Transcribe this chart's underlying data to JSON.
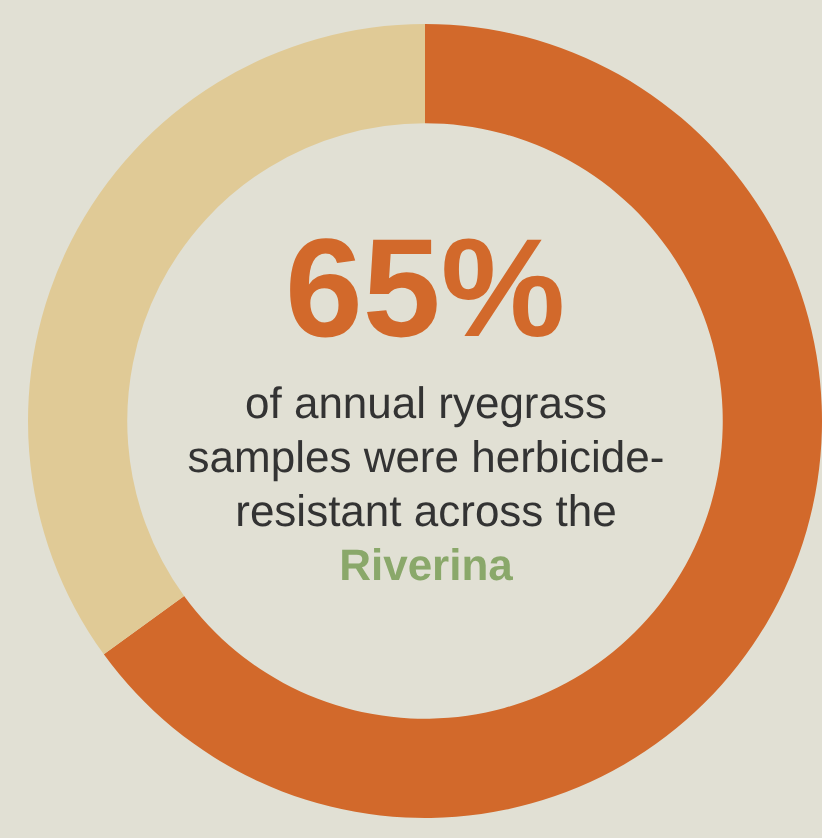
{
  "chart_data": {
    "type": "donut",
    "categories": [
      null,
      null
    ],
    "values": [
      65,
      35
    ],
    "colors": [
      "#d2692b",
      "#e0ca96"
    ],
    "value_labels": [
      "65%",
      null
    ],
    "annotations": [
      "of annual ryegrass samples were herbicide-resistant across the",
      "Riverina"
    ]
  }
}
